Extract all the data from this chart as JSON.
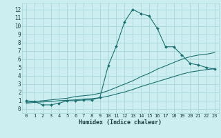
{
  "xlabel": "Humidex (Indice chaleur)",
  "bg_color": "#cceef0",
  "grid_color": "#a8d8da",
  "line_color": "#1a7070",
  "x_ticks": [
    0,
    1,
    2,
    3,
    4,
    5,
    6,
    7,
    8,
    9,
    10,
    11,
    12,
    13,
    14,
    15,
    16,
    17,
    18,
    19,
    20,
    21,
    22,
    23
  ],
  "y_ticks": [
    0,
    1,
    2,
    3,
    4,
    5,
    6,
    7,
    8,
    9,
    10,
    11,
    12
  ],
  "xlim": [
    -0.5,
    23.5
  ],
  "ylim": [
    -0.5,
    12.8
  ],
  "curve1_x": [
    0,
    1,
    2,
    3,
    4,
    5,
    6,
    7,
    8,
    9,
    10,
    11,
    12,
    13,
    14,
    15,
    16,
    17,
    18,
    19,
    20,
    21,
    22,
    23
  ],
  "curve1_y": [
    1.0,
    0.9,
    0.5,
    0.5,
    0.7,
    1.0,
    1.0,
    1.1,
    1.1,
    1.4,
    5.2,
    7.6,
    10.5,
    12.0,
    11.5,
    11.2,
    9.7,
    7.5,
    7.5,
    6.5,
    5.5,
    5.3,
    5.0,
    4.8
  ],
  "curve2_x": [
    0,
    1,
    2,
    3,
    4,
    5,
    6,
    7,
    8,
    9,
    10,
    11,
    12,
    13,
    14,
    15,
    16,
    17,
    18,
    19,
    20,
    21,
    22,
    23
  ],
  "curve2_y": [
    0.8,
    0.9,
    1.0,
    1.1,
    1.2,
    1.3,
    1.5,
    1.6,
    1.7,
    1.9,
    2.2,
    2.6,
    3.0,
    3.4,
    3.9,
    4.3,
    4.8,
    5.2,
    5.6,
    6.0,
    6.3,
    6.5,
    6.6,
    6.8
  ],
  "curve3_x": [
    0,
    1,
    2,
    3,
    4,
    5,
    6,
    7,
    8,
    9,
    10,
    11,
    12,
    13,
    14,
    15,
    16,
    17,
    18,
    19,
    20,
    21,
    22,
    23
  ],
  "curve3_y": [
    0.7,
    0.8,
    0.85,
    0.9,
    1.0,
    1.05,
    1.1,
    1.2,
    1.25,
    1.35,
    1.55,
    1.8,
    2.05,
    2.35,
    2.7,
    3.0,
    3.3,
    3.6,
    3.9,
    4.2,
    4.45,
    4.6,
    4.75,
    4.85
  ]
}
